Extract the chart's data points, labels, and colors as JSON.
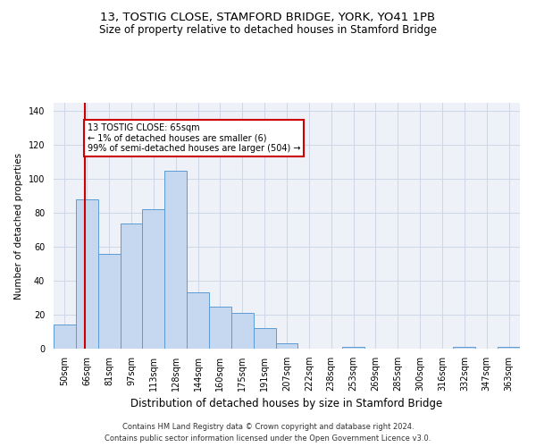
{
  "title1": "13, TOSTIG CLOSE, STAMFORD BRIDGE, YORK, YO41 1PB",
  "title2": "Size of property relative to detached houses in Stamford Bridge",
  "xlabel": "Distribution of detached houses by size in Stamford Bridge",
  "ylabel": "Number of detached properties",
  "footnote1": "Contains HM Land Registry data © Crown copyright and database right 2024.",
  "footnote2": "Contains public sector information licensed under the Open Government Licence v3.0.",
  "categories": [
    "50sqm",
    "66sqm",
    "81sqm",
    "97sqm",
    "113sqm",
    "128sqm",
    "144sqm",
    "160sqm",
    "175sqm",
    "191sqm",
    "207sqm",
    "222sqm",
    "238sqm",
    "253sqm",
    "269sqm",
    "285sqm",
    "300sqm",
    "316sqm",
    "332sqm",
    "347sqm",
    "363sqm"
  ],
  "bar_values": [
    14,
    88,
    56,
    74,
    82,
    105,
    33,
    25,
    21,
    12,
    3,
    0,
    0,
    1,
    0,
    0,
    0,
    0,
    1,
    0,
    1
  ],
  "bar_color": "#c5d8f0",
  "bar_edge_color": "#5b9bd5",
  "bar_width": 1.0,
  "ylim": [
    0,
    145
  ],
  "yticks": [
    0,
    20,
    40,
    60,
    80,
    100,
    120,
    140
  ],
  "grid_color": "#d0d8e8",
  "bg_color": "#eef2f8",
  "red_line_x": 0.9,
  "annotation_text": "13 TOSTIG CLOSE: 65sqm\n← 1% of detached houses are smaller (6)\n99% of semi-detached houses are larger (504) →",
  "annotation_box_color": "#ffffff",
  "annotation_box_edge": "#cc0000",
  "red_line_color": "#cc0000",
  "title1_fontsize": 9.5,
  "title2_fontsize": 8.5,
  "xlabel_fontsize": 8.5,
  "ylabel_fontsize": 7.5,
  "tick_fontsize": 7,
  "footnote_fontsize": 6,
  "annot_fontsize": 7
}
